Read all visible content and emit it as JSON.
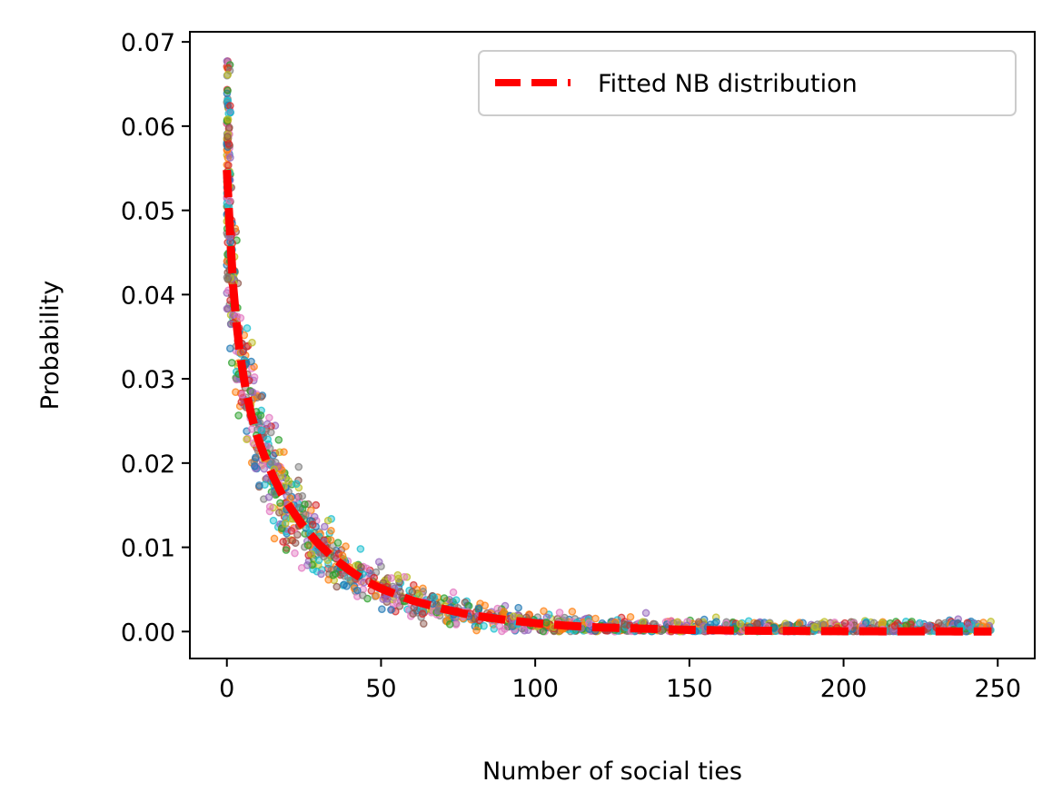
{
  "chart_data": {
    "type": "scatter",
    "title": "",
    "xlabel": "Number of social ties",
    "ylabel": "Probability",
    "xlim": [
      -12,
      262
    ],
    "ylim": [
      -0.0032,
      0.0712
    ],
    "xticks": [
      0,
      50,
      100,
      150,
      200,
      250
    ],
    "xtick_labels": [
      "0",
      "50",
      "100",
      "150",
      "200",
      "250"
    ],
    "yticks": [
      0.0,
      0.01,
      0.02,
      0.03,
      0.04,
      0.05,
      0.06,
      0.07
    ],
    "ytick_labels": [
      "0.00",
      "0.01",
      "0.02",
      "0.03",
      "0.04",
      "0.05",
      "0.06",
      "0.07"
    ],
    "grid": false,
    "legend": {
      "placement": "upper right",
      "entries": [
        {
          "label": "Fitted NB distribution",
          "color": "#ff0000",
          "style": "dashed"
        }
      ]
    },
    "scatter_colors": [
      "#1f77b4",
      "#ff7f0e",
      "#2ca02c",
      "#d62728",
      "#9467bd",
      "#8c564b",
      "#e377c2",
      "#7f7f7f",
      "#bcbd22",
      "#17becf"
    ],
    "series": [
      {
        "name": "Fitted NB distribution",
        "type": "line",
        "color": "#ff0000",
        "style": "dashed",
        "x": [
          0,
          1,
          2,
          3,
          4,
          5,
          6,
          8,
          10,
          12,
          15,
          18,
          20,
          25,
          30,
          35,
          40,
          45,
          50,
          60,
          70,
          80,
          90,
          100,
          110,
          120,
          130,
          140,
          150,
          160,
          170,
          180,
          190,
          200,
          210,
          220,
          230,
          240,
          248
        ],
        "y": [
          0.0548,
          0.0475,
          0.0412,
          0.037,
          0.0338,
          0.0312,
          0.029,
          0.0256,
          0.023,
          0.021,
          0.0184,
          0.0162,
          0.015,
          0.0124,
          0.0103,
          0.0086,
          0.0072,
          0.006,
          0.0051,
          0.0037,
          0.0027,
          0.0019,
          0.0014,
          0.001,
          0.0007,
          0.0005,
          0.0004,
          0.0003,
          0.0002,
          0.00015,
          0.0001,
          8e-05,
          6e-05,
          4e-05,
          3e-05,
          2e-05,
          2e-05,
          1e-05,
          1e-05
        ]
      }
    ],
    "scatter_samples": {
      "description_range_x": [
        0,
        248
      ],
      "count": 1400,
      "max_y": 0.0677
    }
  }
}
